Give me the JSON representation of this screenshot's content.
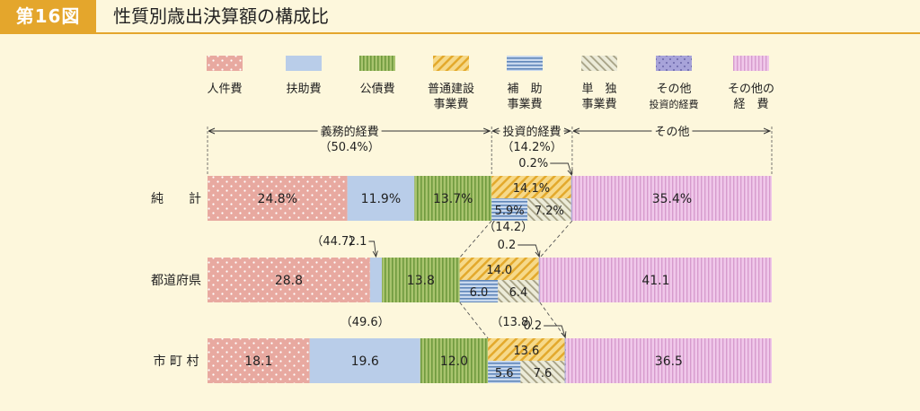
{
  "header": {
    "badge": "第16図",
    "title": "性質別歳出決算額の構成比"
  },
  "colors": {
    "accent": "#e4a62c",
    "background": "#fdf7dc"
  },
  "legend": [
    {
      "key": "jinken",
      "lines": [
        "人件費"
      ],
      "pattern": "p-jinken"
    },
    {
      "key": "fujo",
      "lines": [
        "扶助費"
      ],
      "pattern": "p-fujo"
    },
    {
      "key": "kosai",
      "lines": [
        "公債費"
      ],
      "pattern": "p-kosai"
    },
    {
      "key": "futsu",
      "lines": [
        "普通建設",
        "事業費"
      ],
      "pattern": "p-futsu"
    },
    {
      "key": "hojo",
      "lines": [
        "補　助",
        "事業費"
      ],
      "pattern": "p-hojo"
    },
    {
      "key": "tandoku",
      "lines": [
        "単　独",
        "事業費"
      ],
      "pattern": "p-tandoku"
    },
    {
      "key": "sonota_toshi",
      "lines": [
        "その他",
        "投資的経費"
      ],
      "pattern": "p-sonota-toshi"
    },
    {
      "key": "sonota_keihi",
      "lines": [
        "その他の",
        "経　費"
      ],
      "pattern": "p-sonota-keihi"
    }
  ],
  "groups": {
    "gimu": {
      "label": "義務的経費",
      "pct": "（50.4%）"
    },
    "toshi": {
      "label": "投資的経費",
      "pct": "（14.2%）"
    },
    "sonota": {
      "label": "その他"
    }
  },
  "chart_data": {
    "type": "bar",
    "stacked": true,
    "orientation": "horizontal",
    "unit": "%",
    "categories": [
      "純　　計",
      "都道府県",
      "市 町 村"
    ],
    "rows": [
      {
        "name": "純　　計",
        "segments": [
          {
            "key": "jinken",
            "value": 24.8,
            "label": "24.8%"
          },
          {
            "key": "fujo",
            "value": 11.9,
            "label": "11.9%"
          },
          {
            "key": "kosai",
            "value": 13.7,
            "label": "13.7%"
          },
          {
            "key": "futsu",
            "value": 14.1,
            "label": "14.1%",
            "sub": [
              {
                "key": "hojo",
                "value": 5.9,
                "label": "5.9%"
              },
              {
                "key": "tandoku",
                "value": 7.2,
                "label": "7.2%"
              }
            ]
          },
          {
            "key": "sonota_toshi",
            "value": 0.2,
            "label": "0.2%"
          },
          {
            "key": "sonota_keihi",
            "value": 35.4,
            "label": "35.4%"
          }
        ]
      },
      {
        "name": "都道府県",
        "gimu_total": "（44.7）",
        "toshi_total": "（14.2）",
        "segments": [
          {
            "key": "jinken",
            "value": 28.8,
            "label": "28.8"
          },
          {
            "key": "fujo",
            "value": 2.1,
            "label": "2.1"
          },
          {
            "key": "kosai",
            "value": 13.8,
            "label": "13.8"
          },
          {
            "key": "futsu",
            "value": 14.0,
            "label": "14.0",
            "sub": [
              {
                "key": "hojo",
                "value": 6.0,
                "label": "6.0"
              },
              {
                "key": "tandoku",
                "value": 6.4,
                "label": "6.4"
              }
            ]
          },
          {
            "key": "sonota_toshi",
            "value": 0.2,
            "label": "0.2"
          },
          {
            "key": "sonota_keihi",
            "value": 41.1,
            "label": "41.1"
          }
        ]
      },
      {
        "name": "市 町 村",
        "gimu_total": "（49.6）",
        "toshi_total": "（13.8）",
        "segments": [
          {
            "key": "jinken",
            "value": 18.1,
            "label": "18.1"
          },
          {
            "key": "fujo",
            "value": 19.6,
            "label": "19.6"
          },
          {
            "key": "kosai",
            "value": 12.0,
            "label": "12.0"
          },
          {
            "key": "futsu",
            "value": 13.6,
            "label": "13.6",
            "sub": [
              {
                "key": "hojo",
                "value": 5.6,
                "label": "5.6"
              },
              {
                "key": "tandoku",
                "value": 7.6,
                "label": "7.6"
              }
            ]
          },
          {
            "key": "sonota_toshi",
            "value": 0.2,
            "label": "0.2"
          },
          {
            "key": "sonota_keihi",
            "value": 36.5,
            "label": "36.5"
          }
        ]
      }
    ]
  }
}
